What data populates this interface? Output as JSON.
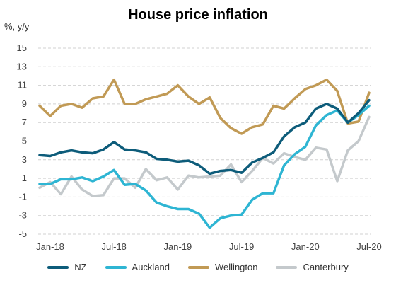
{
  "chart_data": {
    "type": "line",
    "title": "House price inflation",
    "ylabel": "%, y/y",
    "xlabel": "",
    "ylim": [
      -5,
      15
    ],
    "yticks": [
      15,
      13,
      11,
      9,
      7,
      5,
      3,
      1,
      -1,
      -3,
      -5
    ],
    "x_tick_labels": [
      "Jan-18",
      "Jul-18",
      "Jan-19",
      "Jul-19",
      "Jan-20",
      "Jul-20"
    ],
    "x": [
      "2017-12",
      "2018-01",
      "2018-02",
      "2018-03",
      "2018-04",
      "2018-05",
      "2018-06",
      "2018-07",
      "2018-08",
      "2018-09",
      "2018-10",
      "2018-11",
      "2018-12",
      "2019-01",
      "2019-02",
      "2019-03",
      "2019-04",
      "2019-05",
      "2019-06",
      "2019-07",
      "2019-08",
      "2019-09",
      "2019-10",
      "2019-11",
      "2019-12",
      "2020-01",
      "2020-02",
      "2020-03",
      "2020-04",
      "2020-05",
      "2020-06",
      "2020-07"
    ],
    "grid": true,
    "legend_position": "bottom",
    "series": [
      {
        "name": "NZ",
        "color": "#0d5c7a",
        "values": [
          3.5,
          3.4,
          3.8,
          4.0,
          3.8,
          3.7,
          4.1,
          4.9,
          4.1,
          4.0,
          3.8,
          3.1,
          3.0,
          2.8,
          2.9,
          2.4,
          1.5,
          1.8,
          1.9,
          1.6,
          2.7,
          3.2,
          3.8,
          5.5,
          6.5,
          7.0,
          8.5,
          9.0,
          8.5,
          7.0,
          8.0,
          9.4
        ]
      },
      {
        "name": "Auckland",
        "color": "#2eb5d3",
        "values": [
          0.4,
          0.4,
          0.9,
          0.9,
          1.1,
          0.7,
          1.2,
          1.9,
          0.3,
          0.4,
          -0.3,
          -1.6,
          -2.0,
          -2.3,
          -2.3,
          -2.8,
          -4.3,
          -3.3,
          -3.0,
          -2.9,
          -1.3,
          -0.6,
          -0.6,
          2.4,
          3.6,
          4.4,
          6.7,
          7.8,
          8.3,
          7.0,
          7.8,
          8.8
        ]
      },
      {
        "name": "Wellington",
        "color": "#c19a55",
        "values": [
          8.8,
          7.7,
          8.8,
          9.0,
          8.6,
          9.6,
          9.8,
          11.6,
          9.0,
          9.0,
          9.5,
          9.8,
          10.1,
          11.0,
          9.8,
          9.0,
          9.7,
          7.5,
          6.4,
          5.8,
          6.5,
          6.8,
          8.8,
          8.5,
          9.6,
          10.6,
          11.0,
          11.6,
          10.4,
          6.9,
          7.1,
          10.2
        ]
      },
      {
        "name": "Canterbury",
        "color": "#c4c9cc",
        "values": [
          0.0,
          0.6,
          -0.7,
          1.2,
          -0.2,
          -0.9,
          -0.8,
          1.0,
          1.0,
          0.0,
          2.0,
          0.8,
          1.1,
          -0.2,
          1.3,
          1.1,
          1.2,
          1.3,
          2.5,
          0.6,
          1.8,
          3.2,
          2.6,
          3.7,
          3.3,
          3.0,
          4.3,
          4.1,
          0.7,
          4.0,
          5.0,
          7.6
        ]
      }
    ]
  }
}
